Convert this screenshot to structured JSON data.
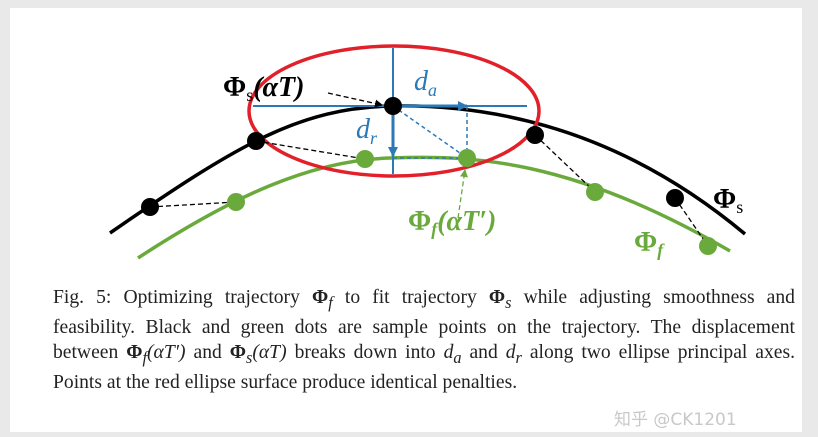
{
  "figure": {
    "labels": {
      "phi_s_alpha_T_sym": "Φ",
      "phi_s_alpha_T_sub": "s",
      "phi_s_alpha_T_arg": "(αT)",
      "d_a_sym": "d",
      "d_a_sub": "a",
      "d_r_sym": "d",
      "d_r_sub": "r",
      "phi_f_alpha_T_prime_sym": "Φ",
      "phi_f_alpha_T_prime_sub": "f",
      "phi_f_alpha_T_prime_arg": "(αT′)",
      "phi_s_sym": "Φ",
      "phi_s_sub": "s",
      "phi_f_sym": "Φ",
      "phi_f_sub": "f"
    },
    "colors": {
      "trajectory_s": "#000000",
      "trajectory_f": "#6aaa3c",
      "ellipse": "#e2202a",
      "axes": "#2a7ab8"
    }
  },
  "caption": {
    "fig_label": "Fig. 5:",
    "p1": "Optimizing trajectory",
    "phi": "Φ",
    "f": "f",
    "s": "s",
    "p2": "to fit trajectory",
    "p3": "while adjusting smoothness and feasibility. Black and green dots are sample points on the trajectory. The displacement between",
    "arg_prime": "(αT′)",
    "and": "and",
    "arg": "(αT)",
    "p4": "breaks down into",
    "d": "d",
    "a": "a",
    "r": "r",
    "p5": "along two ellipse principal axes. Points at the red ellipse surface produce identical penalties."
  },
  "watermark": "知乎 @CK1201"
}
